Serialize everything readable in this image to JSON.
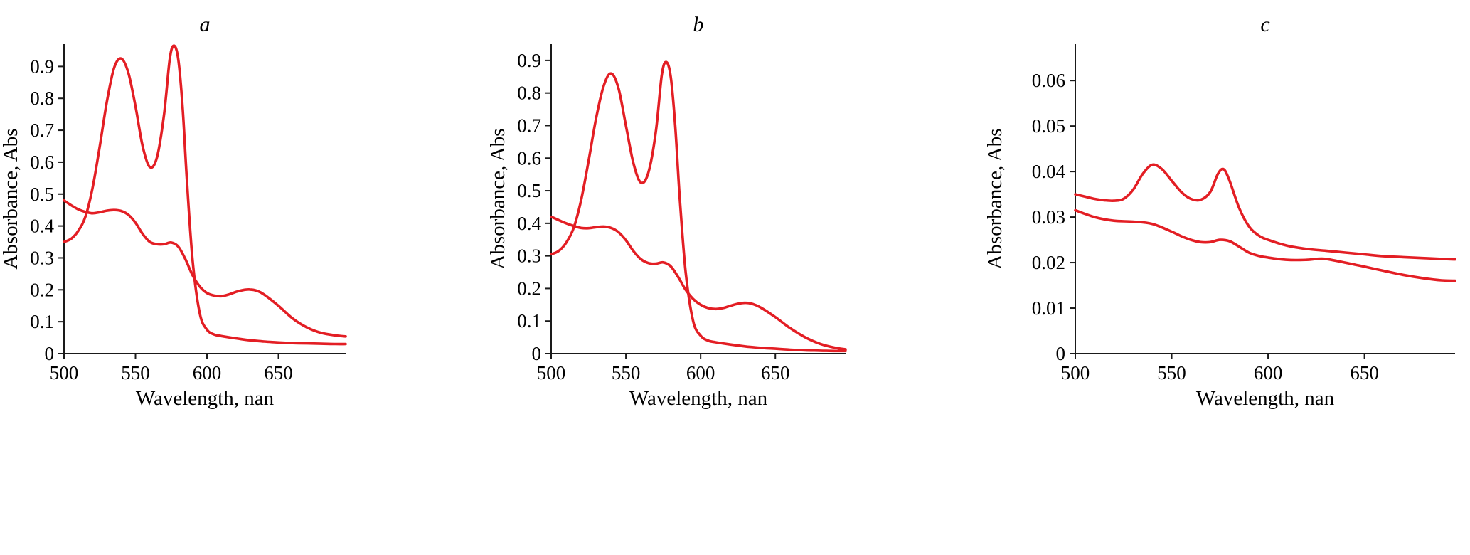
{
  "page": {
    "background": "#ffffff",
    "axis_color": "#1a1a1a"
  },
  "chart_data": [
    {
      "id": "a",
      "type": "line",
      "title": "a",
      "xlabel": "Wavelength, nan",
      "ylabel": "Absorbance, Abs",
      "xlim": [
        500,
        697
      ],
      "ylim": [
        0,
        0.97
      ],
      "xticks": [
        500,
        550,
        600,
        650
      ],
      "xtick_labels": [
        "500",
        "550",
        "600",
        "650"
      ],
      "yticks": [
        0,
        0.1,
        0.2,
        0.3,
        0.4,
        0.5,
        0.6,
        0.7,
        0.8,
        0.9
      ],
      "ytick_labels": [
        "0",
        "0.1",
        "0.2",
        "0.3",
        "0.4",
        "0.5",
        "0.6",
        "0.7",
        "0.8",
        "0.9"
      ],
      "grid": false,
      "legend": "none",
      "line_color": "#e31e24",
      "series": [
        {
          "name": "upper-spectrum",
          "x": [
            500,
            505,
            510,
            515,
            520,
            525,
            530,
            535,
            540,
            545,
            550,
            555,
            560,
            565,
            570,
            574,
            577,
            580,
            583,
            586,
            590,
            595,
            600,
            605,
            610,
            620,
            630,
            640,
            650,
            660,
            670,
            680,
            690,
            697
          ],
          "y": [
            0.35,
            0.36,
            0.385,
            0.43,
            0.52,
            0.65,
            0.79,
            0.895,
            0.925,
            0.88,
            0.775,
            0.65,
            0.585,
            0.615,
            0.75,
            0.925,
            0.965,
            0.92,
            0.77,
            0.54,
            0.29,
            0.125,
            0.075,
            0.06,
            0.055,
            0.048,
            0.042,
            0.038,
            0.035,
            0.033,
            0.032,
            0.031,
            0.03,
            0.03
          ]
        },
        {
          "name": "lower-spectrum",
          "x": [
            500,
            505,
            510,
            515,
            520,
            525,
            530,
            535,
            540,
            545,
            550,
            555,
            560,
            565,
            570,
            575,
            580,
            585,
            590,
            595,
            600,
            605,
            610,
            615,
            620,
            625,
            630,
            635,
            640,
            650,
            660,
            670,
            680,
            690,
            697
          ],
          "y": [
            0.48,
            0.465,
            0.452,
            0.444,
            0.44,
            0.443,
            0.448,
            0.45,
            0.447,
            0.435,
            0.41,
            0.375,
            0.35,
            0.343,
            0.343,
            0.348,
            0.335,
            0.295,
            0.245,
            0.21,
            0.19,
            0.182,
            0.18,
            0.185,
            0.193,
            0.199,
            0.201,
            0.197,
            0.185,
            0.15,
            0.11,
            0.082,
            0.065,
            0.057,
            0.054
          ]
        }
      ]
    },
    {
      "id": "b",
      "type": "line",
      "title": "b",
      "xlabel": "Wavelength, nan",
      "ylabel": "Absorbance, Abs",
      "xlim": [
        500,
        697
      ],
      "ylim": [
        0,
        0.95
      ],
      "xticks": [
        500,
        550,
        600,
        650
      ],
      "xtick_labels": [
        "500",
        "550",
        "600",
        "650"
      ],
      "yticks": [
        0,
        0.1,
        0.2,
        0.3,
        0.4,
        0.5,
        0.6,
        0.7,
        0.8,
        0.9
      ],
      "ytick_labels": [
        "0",
        "0.1",
        "0.2",
        "0.3",
        "0.4",
        "0.5",
        "0.6",
        "0.7",
        "0.8",
        "0.9"
      ],
      "grid": false,
      "legend": "none",
      "line_color": "#e31e24",
      "series": [
        {
          "name": "upper-spectrum",
          "x": [
            500,
            505,
            510,
            515,
            520,
            525,
            530,
            535,
            540,
            545,
            550,
            555,
            560,
            565,
            570,
            574,
            577,
            580,
            583,
            586,
            590,
            595,
            600,
            605,
            610,
            620,
            630,
            640,
            650,
            660,
            670,
            680,
            690,
            697
          ],
          "y": [
            0.305,
            0.315,
            0.34,
            0.385,
            0.47,
            0.59,
            0.72,
            0.82,
            0.86,
            0.815,
            0.7,
            0.585,
            0.525,
            0.555,
            0.68,
            0.855,
            0.895,
            0.85,
            0.7,
            0.48,
            0.25,
            0.1,
            0.055,
            0.04,
            0.035,
            0.028,
            0.022,
            0.018,
            0.015,
            0.012,
            0.01,
            0.009,
            0.008,
            0.008
          ]
        },
        {
          "name": "lower-spectrum",
          "x": [
            500,
            505,
            510,
            515,
            520,
            525,
            530,
            535,
            540,
            545,
            550,
            555,
            560,
            565,
            570,
            575,
            580,
            585,
            590,
            595,
            600,
            605,
            610,
            615,
            620,
            625,
            630,
            635,
            640,
            650,
            660,
            670,
            680,
            690,
            697
          ],
          "y": [
            0.42,
            0.41,
            0.4,
            0.392,
            0.386,
            0.385,
            0.388,
            0.39,
            0.386,
            0.373,
            0.348,
            0.315,
            0.29,
            0.278,
            0.276,
            0.28,
            0.268,
            0.235,
            0.196,
            0.168,
            0.15,
            0.14,
            0.137,
            0.14,
            0.147,
            0.153,
            0.156,
            0.152,
            0.142,
            0.112,
            0.078,
            0.05,
            0.03,
            0.018,
            0.013
          ]
        }
      ]
    },
    {
      "id": "c",
      "type": "line",
      "title": "c",
      "xlabel": "Wavelength, nan",
      "ylabel": "Absorbance, Abs",
      "xlim": [
        500,
        697
      ],
      "ylim": [
        0,
        0.068
      ],
      "xticks": [
        500,
        550,
        600,
        650
      ],
      "xtick_labels": [
        "500",
        "550",
        "600",
        "650"
      ],
      "yticks": [
        0,
        0.01,
        0.02,
        0.03,
        0.04,
        0.05,
        0.06
      ],
      "ytick_labels": [
        "0",
        "0.01",
        "0.02",
        "0.03",
        "0.04",
        "0.05",
        "0.06"
      ],
      "grid": false,
      "legend": "none",
      "line_color": "#e31e24",
      "series": [
        {
          "name": "upper-spectrum",
          "x": [
            500,
            505,
            510,
            515,
            520,
            525,
            530,
            535,
            540,
            545,
            550,
            555,
            560,
            565,
            570,
            574,
            577,
            580,
            585,
            590,
            595,
            600,
            610,
            620,
            630,
            640,
            650,
            660,
            670,
            680,
            690,
            697
          ],
          "y": [
            0.035,
            0.0345,
            0.034,
            0.0337,
            0.0336,
            0.034,
            0.036,
            0.0395,
            0.0415,
            0.0405,
            0.038,
            0.0355,
            0.034,
            0.0338,
            0.0355,
            0.0395,
            0.0405,
            0.038,
            0.032,
            0.028,
            0.026,
            0.025,
            0.0237,
            0.023,
            0.0226,
            0.0222,
            0.0218,
            0.0214,
            0.0212,
            0.021,
            0.0208,
            0.0207
          ]
        },
        {
          "name": "lower-spectrum",
          "x": [
            500,
            510,
            520,
            530,
            540,
            550,
            555,
            560,
            565,
            570,
            575,
            580,
            585,
            590,
            595,
            600,
            610,
            620,
            625,
            630,
            640,
            650,
            660,
            670,
            680,
            690,
            697
          ],
          "y": [
            0.0315,
            0.03,
            0.0292,
            0.029,
            0.0285,
            0.0268,
            0.0258,
            0.025,
            0.0245,
            0.0245,
            0.025,
            0.0247,
            0.0235,
            0.0222,
            0.0215,
            0.0211,
            0.0206,
            0.0206,
            0.0208,
            0.0208,
            0.02,
            0.0191,
            0.0182,
            0.0173,
            0.0166,
            0.0161,
            0.016
          ]
        }
      ]
    }
  ]
}
